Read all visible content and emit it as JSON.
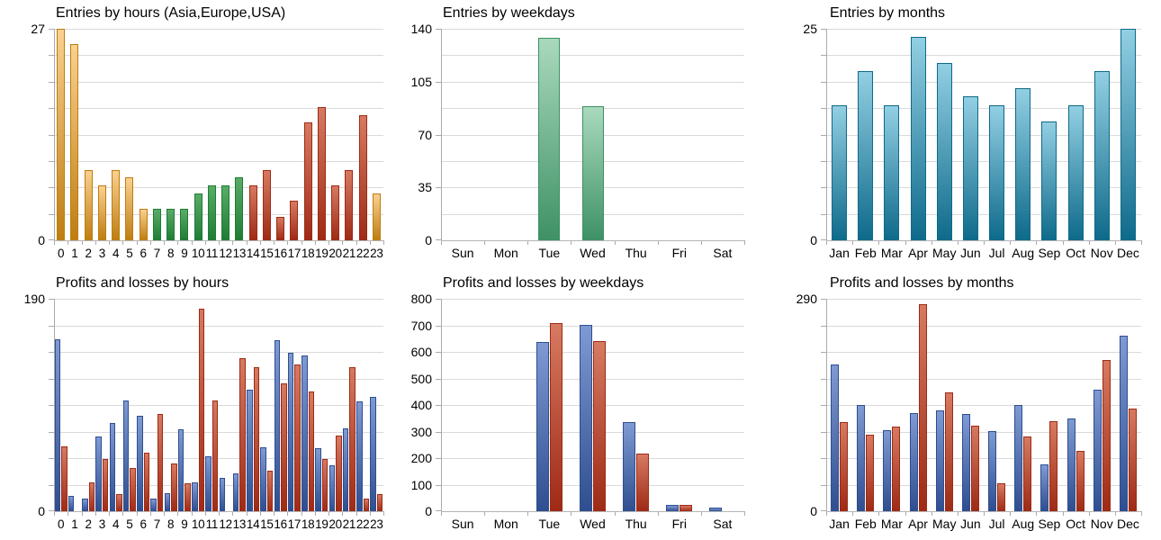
{
  "palette": {
    "orange": {
      "light": "#FAD190",
      "dark": "#BE7D10"
    },
    "green": {
      "light": "#58AC67",
      "dark": "#1F7C35"
    },
    "red": {
      "light": "#D67A61",
      "dark": "#9E2A15"
    },
    "mint": {
      "light": "#A9D9BD",
      "dark": "#3E9165"
    },
    "teal": {
      "light": "#92CFE3",
      "dark": "#0E6A8A"
    },
    "blue": {
      "light": "#7F9AD3",
      "dark": "#2E4E90"
    }
  },
  "chart_data": [
    {
      "type": "bar",
      "title": "Entries by hours (Asia,Europe,USA)",
      "categories": [
        "0",
        "1",
        "2",
        "3",
        "4",
        "5",
        "6",
        "7",
        "8",
        "9",
        "10",
        "11",
        "12",
        "13",
        "14",
        "15",
        "16",
        "17",
        "18",
        "19",
        "20",
        "21",
        "22",
        "23"
      ],
      "series": [
        {
          "name": "entries",
          "values": [
            27,
            25,
            9,
            7,
            9,
            8,
            4,
            4,
            4,
            4,
            6,
            7,
            7,
            8,
            7,
            9,
            3,
            5,
            15,
            17,
            7,
            9,
            16,
            6
          ],
          "colors": [
            "orange",
            "orange",
            "orange",
            "orange",
            "orange",
            "orange",
            "orange",
            "green",
            "green",
            "green",
            "green",
            "green",
            "green",
            "green",
            "red",
            "red",
            "red",
            "red",
            "red",
            "red",
            "red",
            "red",
            "red",
            "orange"
          ]
        }
      ],
      "ylim": [
        0,
        27
      ],
      "yticks": [
        0,
        27
      ],
      "grid_intervals": 8,
      "grid": true,
      "legend": "none",
      "xlabel": "",
      "ylabel": ""
    },
    {
      "type": "bar",
      "title": "Entries by weekdays",
      "categories": [
        "Sun",
        "Mon",
        "Tue",
        "Wed",
        "Thu",
        "Fri",
        "Sat"
      ],
      "series": [
        {
          "name": "entries",
          "color": "mint",
          "values": [
            0,
            0,
            134,
            89,
            0,
            0,
            0
          ]
        }
      ],
      "ylim": [
        0,
        140
      ],
      "yticks": [
        0,
        35,
        70,
        105,
        140
      ],
      "grid_intervals": 8,
      "grid": true,
      "legend": "none",
      "xlabel": "",
      "ylabel": ""
    },
    {
      "type": "bar",
      "title": "Entries by months",
      "categories": [
        "Jan",
        "Feb",
        "Mar",
        "Apr",
        "May",
        "Jun",
        "Jul",
        "Aug",
        "Sep",
        "Oct",
        "Nov",
        "Dec"
      ],
      "series": [
        {
          "name": "entries",
          "color": "teal",
          "values": [
            16,
            20,
            16,
            24,
            21,
            17,
            16,
            18,
            14,
            16,
            20,
            25
          ]
        }
      ],
      "ylim": [
        0,
        25
      ],
      "yticks": [
        0,
        25
      ],
      "grid_intervals": 8,
      "grid": true,
      "legend": "none",
      "xlabel": "",
      "ylabel": ""
    },
    {
      "type": "bar",
      "title": "Profits and losses by hours",
      "categories": [
        "0",
        "1",
        "2",
        "3",
        "4",
        "5",
        "6",
        "7",
        "8",
        "9",
        "10",
        "11",
        "12",
        "13",
        "14",
        "15",
        "16",
        "17",
        "18",
        "19",
        "20",
        "21",
        "22",
        "23"
      ],
      "series": [
        {
          "name": "profits",
          "color": "blue",
          "values": [
            154,
            14,
            11,
            67,
            79,
            99,
            85,
            11,
            16,
            73,
            26,
            49,
            30,
            34,
            109,
            57,
            153,
            142,
            139,
            56,
            41,
            74,
            98,
            102
          ]
        },
        {
          "name": "losses",
          "color": "red",
          "values": [
            58,
            0,
            26,
            47,
            15,
            39,
            52,
            87,
            43,
            25,
            181,
            99,
            0,
            137,
            129,
            36,
            114,
            131,
            107,
            47,
            68,
            129,
            11,
            15
          ]
        }
      ],
      "ylim": [
        0,
        190
      ],
      "yticks": [
        0,
        190
      ],
      "grid_intervals": 8,
      "grid": true,
      "legend": "none",
      "xlabel": "",
      "ylabel": ""
    },
    {
      "type": "bar",
      "title": "Profits and losses by weekdays",
      "categories": [
        "Sun",
        "Mon",
        "Tue",
        "Wed",
        "Thu",
        "Fri",
        "Sat"
      ],
      "series": [
        {
          "name": "profits",
          "color": "blue",
          "values": [
            0,
            0,
            638,
            702,
            337,
            25,
            12
          ]
        },
        {
          "name": "losses",
          "color": "red",
          "values": [
            0,
            0,
            710,
            642,
            218,
            25,
            0
          ]
        }
      ],
      "ylim": [
        0,
        800
      ],
      "yticks": [
        0,
        100,
        200,
        300,
        400,
        500,
        600,
        700,
        800
      ],
      "grid_intervals": 8,
      "grid": true,
      "legend": "none",
      "xlabel": "",
      "ylabel": ""
    },
    {
      "type": "bar",
      "title": "Profits and losses by months",
      "categories": [
        "Jan",
        "Feb",
        "Mar",
        "Apr",
        "May",
        "Jun",
        "Jul",
        "Aug",
        "Sep",
        "Oct",
        "Nov",
        "Dec"
      ],
      "series": [
        {
          "name": "profits",
          "color": "blue",
          "values": [
            200,
            145,
            110,
            134,
            138,
            133,
            109,
            145,
            64,
            126,
            166,
            240
          ]
        },
        {
          "name": "losses",
          "color": "red",
          "values": [
            122,
            104,
            116,
            283,
            162,
            117,
            38,
            102,
            123,
            82,
            207,
            140
          ]
        }
      ],
      "ylim": [
        0,
        290
      ],
      "yticks": [
        0,
        290
      ],
      "grid_intervals": 8,
      "grid": true,
      "legend": "none",
      "xlabel": "",
      "ylabel": ""
    }
  ]
}
